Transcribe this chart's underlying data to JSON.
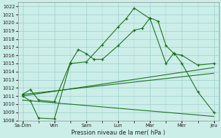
{
  "xlabel": "Pression niveau de la mer( hPa )",
  "background_color": "#cceee8",
  "grid_color": "#99cccc",
  "line_color": "#1a6e1a",
  "ylim": [
    1008,
    1022.5
  ],
  "yticks": [
    1008,
    1009,
    1010,
    1011,
    1012,
    1013,
    1014,
    1015,
    1016,
    1017,
    1018,
    1019,
    1020,
    1021,
    1022
  ],
  "xlim": [
    0,
    6
  ],
  "xtick_positions": [
    0,
    1,
    2,
    3,
    4,
    5,
    6
  ],
  "xtick_labels": [
    "Sa­Dim",
    "Ven",
    "Sam",
    "Lun",
    "Mar",
    "Mer",
    "Jeu"
  ],
  "series1_x": [
    0.0,
    0.25,
    0.5,
    1.0,
    1.5,
    1.75,
    2.0,
    2.25,
    2.5,
    3.0,
    3.5,
    3.75,
    4.0,
    4.25,
    4.5,
    4.75,
    5.0,
    5.5,
    6.0
  ],
  "series1_y": [
    1011.2,
    1011.8,
    1010.5,
    1010.3,
    1015.1,
    1016.7,
    1016.2,
    1015.5,
    1015.5,
    1017.2,
    1019.1,
    1019.3,
    1020.6,
    1020.2,
    1017.2,
    1016.2,
    1016.0,
    1014.8,
    1015.0
  ],
  "series2_x": [
    0.0,
    0.25,
    0.5,
    1.0,
    1.5,
    2.0,
    2.5,
    3.0,
    3.25,
    3.5,
    4.0,
    4.5,
    4.75,
    5.0,
    5.5,
    6.0
  ],
  "series2_y": [
    1011.0,
    1010.4,
    1008.3,
    1008.2,
    1015.0,
    1015.2,
    1017.3,
    1019.5,
    1020.5,
    1021.8,
    1020.5,
    1015.0,
    1016.3,
    1015.0,
    1011.5,
    1009.0
  ],
  "series3_x": [
    0,
    6.0
  ],
  "series3_y": [
    1011.0,
    1014.5
  ],
  "series4_x": [
    0,
    6.0
  ],
  "series4_y": [
    1011.2,
    1013.8
  ],
  "series5_x": [
    0,
    6.0
  ],
  "series5_y": [
    1010.5,
    1008.5
  ]
}
